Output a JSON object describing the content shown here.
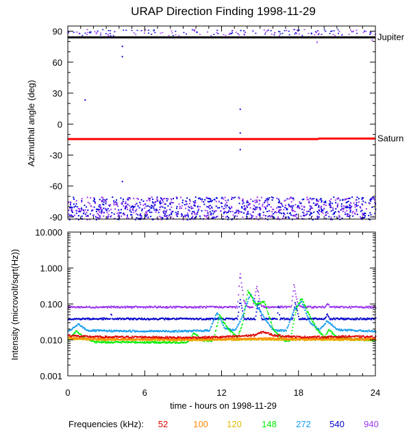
{
  "chart_data": [
    {
      "type": "scatter",
      "title": "URAP Direction Finding  1998-11-29",
      "ylabel": "Azimuthal angle (deg)",
      "xlim": [
        0,
        24
      ],
      "ylim": [
        -92,
        95
      ],
      "yticks": [
        90,
        60,
        30,
        0,
        -30,
        -60,
        -90
      ],
      "tick_labels": [
        "90",
        "60",
        "30",
        "0",
        "-30",
        "-60",
        "-90"
      ],
      "grid": false,
      "reference_lines": [
        {
          "name": "Jupiter",
          "color": "#000000",
          "points": [
            [
              0,
              84
            ],
            [
              24,
              84
            ]
          ]
        },
        {
          "name": "Saturn",
          "color": "#ff0000",
          "points": [
            [
              0,
              -14.5
            ],
            [
              19.5,
              -14.5
            ],
            [
              19.6,
              -14
            ],
            [
              24,
              -14
            ]
          ]
        }
      ],
      "series": [
        {
          "color": "#0000dd",
          "band": [
            -92,
            -70
          ],
          "top_band": [
            86,
            92
          ],
          "outliers": [
            [
              1.3,
              24
            ],
            [
              4.2,
              76
            ],
            [
              4.2,
              66
            ],
            [
              4.2,
              -55
            ],
            [
              13.4,
              15
            ],
            [
              13.4,
              -8
            ],
            [
              13.4,
              -24
            ]
          ]
        },
        {
          "color": "#9933ee",
          "band": [
            -92,
            -70
          ],
          "top_band": [
            86,
            92
          ],
          "outliers": [
            [
              19.4,
              80
            ],
            [
              23.7,
              82
            ]
          ]
        }
      ]
    },
    {
      "type": "scatter",
      "ylabel": "Intensity (microvolt/sqrt(Hz))",
      "xlabel": "time - hours on 1998-11-29",
      "xlim": [
        0,
        24
      ],
      "ylim": [
        0.001,
        10
      ],
      "log_y": true,
      "yticks": [
        10,
        1,
        0.1,
        0.01,
        0.001
      ],
      "tick_labels": [
        "10.000",
        "1.000",
        "0.100",
        "0.010",
        "0.001"
      ],
      "xticks": [
        0,
        6,
        12,
        18,
        24
      ],
      "xtick_labels": [
        "0",
        "6",
        "12",
        "18",
        "24"
      ],
      "grid": false,
      "legend_prefix": "Frequencies (kHz):",
      "series": [
        {
          "name": "52",
          "color": "#dd0000",
          "baseline": 0.0135,
          "points": [
            [
              0,
              0.014
            ],
            [
              1,
              0.013
            ],
            [
              3,
              0.0125
            ],
            [
              6,
              0.0125
            ],
            [
              9,
              0.012
            ],
            [
              12,
              0.0125
            ],
            [
              14.5,
              0.014
            ],
            [
              15.2,
              0.0175
            ],
            [
              16,
              0.014
            ],
            [
              18,
              0.0125
            ],
            [
              20,
              0.0125
            ],
            [
              22,
              0.013
            ],
            [
              24,
              0.0125
            ]
          ]
        },
        {
          "name": "100",
          "color": "#ff8800",
          "baseline": 0.0115,
          "points": [
            [
              0,
              0.012
            ],
            [
              2,
              0.011
            ],
            [
              6,
              0.0108
            ],
            [
              9,
              0.0108
            ],
            [
              12,
              0.011
            ],
            [
              15,
              0.0115
            ],
            [
              18,
              0.011
            ],
            [
              21,
              0.0112
            ],
            [
              24,
              0.011
            ]
          ]
        },
        {
          "name": "120",
          "color": "#ddbb00",
          "baseline": 0.011,
          "points": [
            [
              0,
              0.011
            ],
            [
              3,
              0.0105
            ],
            [
              6,
              0.0105
            ],
            [
              9,
              0.0102
            ],
            [
              12,
              0.0105
            ],
            [
              15,
              0.0108
            ],
            [
              18,
              0.0105
            ],
            [
              24,
              0.0105
            ]
          ]
        },
        {
          "name": "148",
          "color": "#00ee00",
          "baseline": 0.0095,
          "points": [
            [
              0,
              0.01
            ],
            [
              0.6,
              0.018
            ],
            [
              1.3,
              0.012
            ],
            [
              2,
              0.009
            ],
            [
              5,
              0.009
            ],
            [
              8,
              0.0088
            ],
            [
              9.3,
              0.009
            ],
            [
              9.8,
              0.016
            ],
            [
              10.5,
              0.01
            ],
            [
              11.3,
              0.01
            ],
            [
              11.8,
              0.05
            ],
            [
              12.5,
              0.02
            ],
            [
              13.2,
              0.012
            ],
            [
              13.6,
              0.03
            ],
            [
              14,
              0.25
            ],
            [
              14.6,
              0.1
            ],
            [
              15.3,
              0.12
            ],
            [
              16,
              0.02
            ],
            [
              16.8,
              0.01
            ],
            [
              17.3,
              0.01
            ],
            [
              17.8,
              0.08
            ],
            [
              18.2,
              0.15
            ],
            [
              18.8,
              0.05
            ],
            [
              19.4,
              0.02
            ],
            [
              20,
              0.012
            ],
            [
              20.3,
              0.02
            ],
            [
              21,
              0.012
            ],
            [
              22,
              0.011
            ],
            [
              24,
              0.01
            ]
          ]
        },
        {
          "name": "272",
          "color": "#1199ee",
          "baseline": 0.018,
          "points": [
            [
              0,
              0.018
            ],
            [
              0.8,
              0.028
            ],
            [
              1.5,
              0.019
            ],
            [
              3,
              0.0185
            ],
            [
              6,
              0.0182
            ],
            [
              9,
              0.0182
            ],
            [
              11,
              0.019
            ],
            [
              11.6,
              0.06
            ],
            [
              12.2,
              0.022
            ],
            [
              13,
              0.019
            ],
            [
              13.5,
              0.04
            ],
            [
              14.2,
              0.2
            ],
            [
              14.8,
              0.08
            ],
            [
              15.6,
              0.03
            ],
            [
              16,
              0.019
            ],
            [
              17,
              0.019
            ],
            [
              17.6,
              0.07
            ],
            [
              18.2,
              0.12
            ],
            [
              18.9,
              0.03
            ],
            [
              19.6,
              0.02
            ],
            [
              20.2,
              0.035
            ],
            [
              21,
              0.02
            ],
            [
              22.2,
              0.019
            ],
            [
              24,
              0.018
            ]
          ]
        },
        {
          "name": "540",
          "color": "#0000cc",
          "baseline": 0.04,
          "points": [
            [
              0,
              0.04
            ],
            [
              3.3,
              0.04
            ],
            [
              3.35,
              0.06
            ],
            [
              3.4,
              0.04
            ],
            [
              13.2,
              0.04
            ],
            [
              13.4,
              0.14
            ],
            [
              13.7,
              0.04
            ],
            [
              14.6,
              0.04
            ],
            [
              14.8,
              0.12
            ],
            [
              15.1,
              0.04
            ],
            [
              16.3,
              0.04
            ],
            [
              16.4,
              0.11
            ],
            [
              16.5,
              0.04
            ],
            [
              17.5,
              0.04
            ],
            [
              17.7,
              0.12
            ],
            [
              18,
              0.04
            ],
            [
              20,
              0.04
            ],
            [
              20.2,
              0.055
            ],
            [
              20.4,
              0.04
            ],
            [
              24,
              0.04
            ]
          ]
        },
        {
          "name": "940",
          "color": "#9933ee",
          "baseline": 0.085,
          "points": [
            [
              0,
              0.085
            ],
            [
              13.2,
              0.085
            ],
            [
              13.4,
              0.8
            ],
            [
              13.7,
              0.12
            ],
            [
              14,
              0.085
            ],
            [
              14.4,
              0.085
            ],
            [
              14.7,
              0.32
            ],
            [
              15,
              0.1
            ],
            [
              15.3,
              0.085
            ],
            [
              17.4,
              0.085
            ],
            [
              17.6,
              0.35
            ],
            [
              17.9,
              0.1
            ],
            [
              18.2,
              0.085
            ],
            [
              20,
              0.085
            ],
            [
              20.2,
              0.11
            ],
            [
              20.4,
              0.085
            ],
            [
              24,
              0.085
            ]
          ]
        }
      ]
    }
  ]
}
